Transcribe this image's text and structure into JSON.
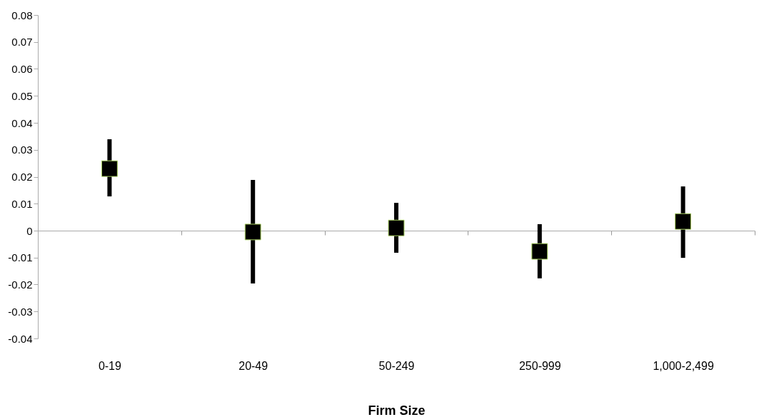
{
  "chart_data": {
    "type": "scatter",
    "xlabel": "Firm Size",
    "categories": [
      "0-19",
      "20-49",
      "50-249",
      "250-999",
      "1,000-2,499"
    ],
    "series": [
      {
        "color": "#000000",
        "values": [
          0.023,
          -0.0005,
          0.001,
          -0.0077,
          0.0034
        ],
        "errors": [
          [
            0.0127,
            0.0339
          ],
          [
            -0.0196,
            0.0188
          ],
          [
            -0.0082,
            0.0103
          ],
          [
            -0.0177,
            0.0024
          ],
          [
            -0.0101,
            0.0164
          ]
        ]
      }
    ],
    "marker": "square",
    "ylim": [
      -0.04,
      0.08
    ],
    "yticks": [
      -0.04,
      -0.03,
      -0.02,
      -0.01,
      0,
      0.01,
      0.02,
      0.03,
      0.04,
      0.05,
      0.06,
      0.07,
      0.08
    ],
    "tick_labels": true
  }
}
